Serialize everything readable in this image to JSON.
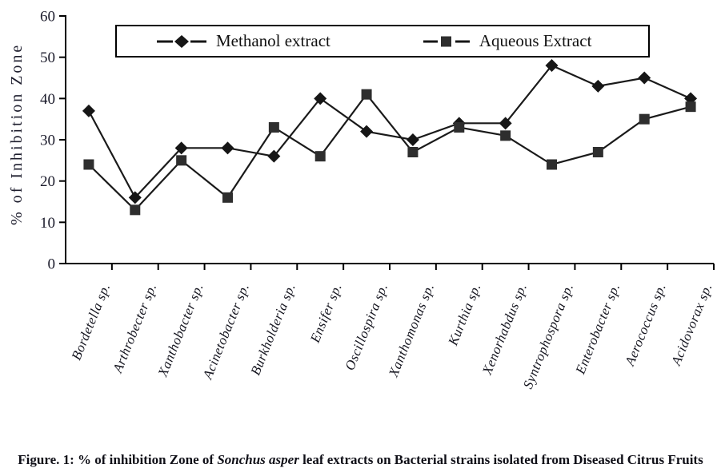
{
  "chart_data": {
    "type": "line",
    "title": "",
    "xlabel": "",
    "ylabel": "% of Inhibition Zone",
    "ylim": [
      0,
      60
    ],
    "yticks": [
      0,
      10,
      20,
      30,
      40,
      50,
      60
    ],
    "grid": false,
    "legend_position": "top-center-boxed",
    "categories": [
      "Bordetella sp.",
      "Arthrobecter sp.",
      "Xanthobacter sp.",
      "Acinetobacter sp.",
      "Burkholderia sp.",
      "Ensifer sp.",
      "Oscillospira sp.",
      "Xanthomonas sp.",
      "Kurthia sp.",
      "Xenorhabdus sp.",
      "Syntrophospora sp.",
      "Enterobacter sp.",
      "Aerococcus sp.",
      "Acidovorax sp."
    ],
    "series": [
      {
        "name": "Methanol extract",
        "marker": "diamond",
        "color": "#161616",
        "values": [
          37,
          16,
          28,
          28,
          26,
          40,
          32,
          30,
          34,
          34,
          48,
          43,
          45,
          40
        ]
      },
      {
        "name": "Aqueous Extract",
        "marker": "square",
        "color": "#2e2e2e",
        "values": [
          24,
          13,
          25,
          16,
          33,
          26,
          41,
          27,
          33,
          31,
          24,
          27,
          35,
          38
        ]
      }
    ]
  },
  "caption": {
    "prefix": "Figure. 1: % of inhibition Zone of ",
    "italic": "Sonchus asper",
    "suffix": " leaf extracts on Bacterial strains isolated from Diseased Citrus Fruits"
  }
}
